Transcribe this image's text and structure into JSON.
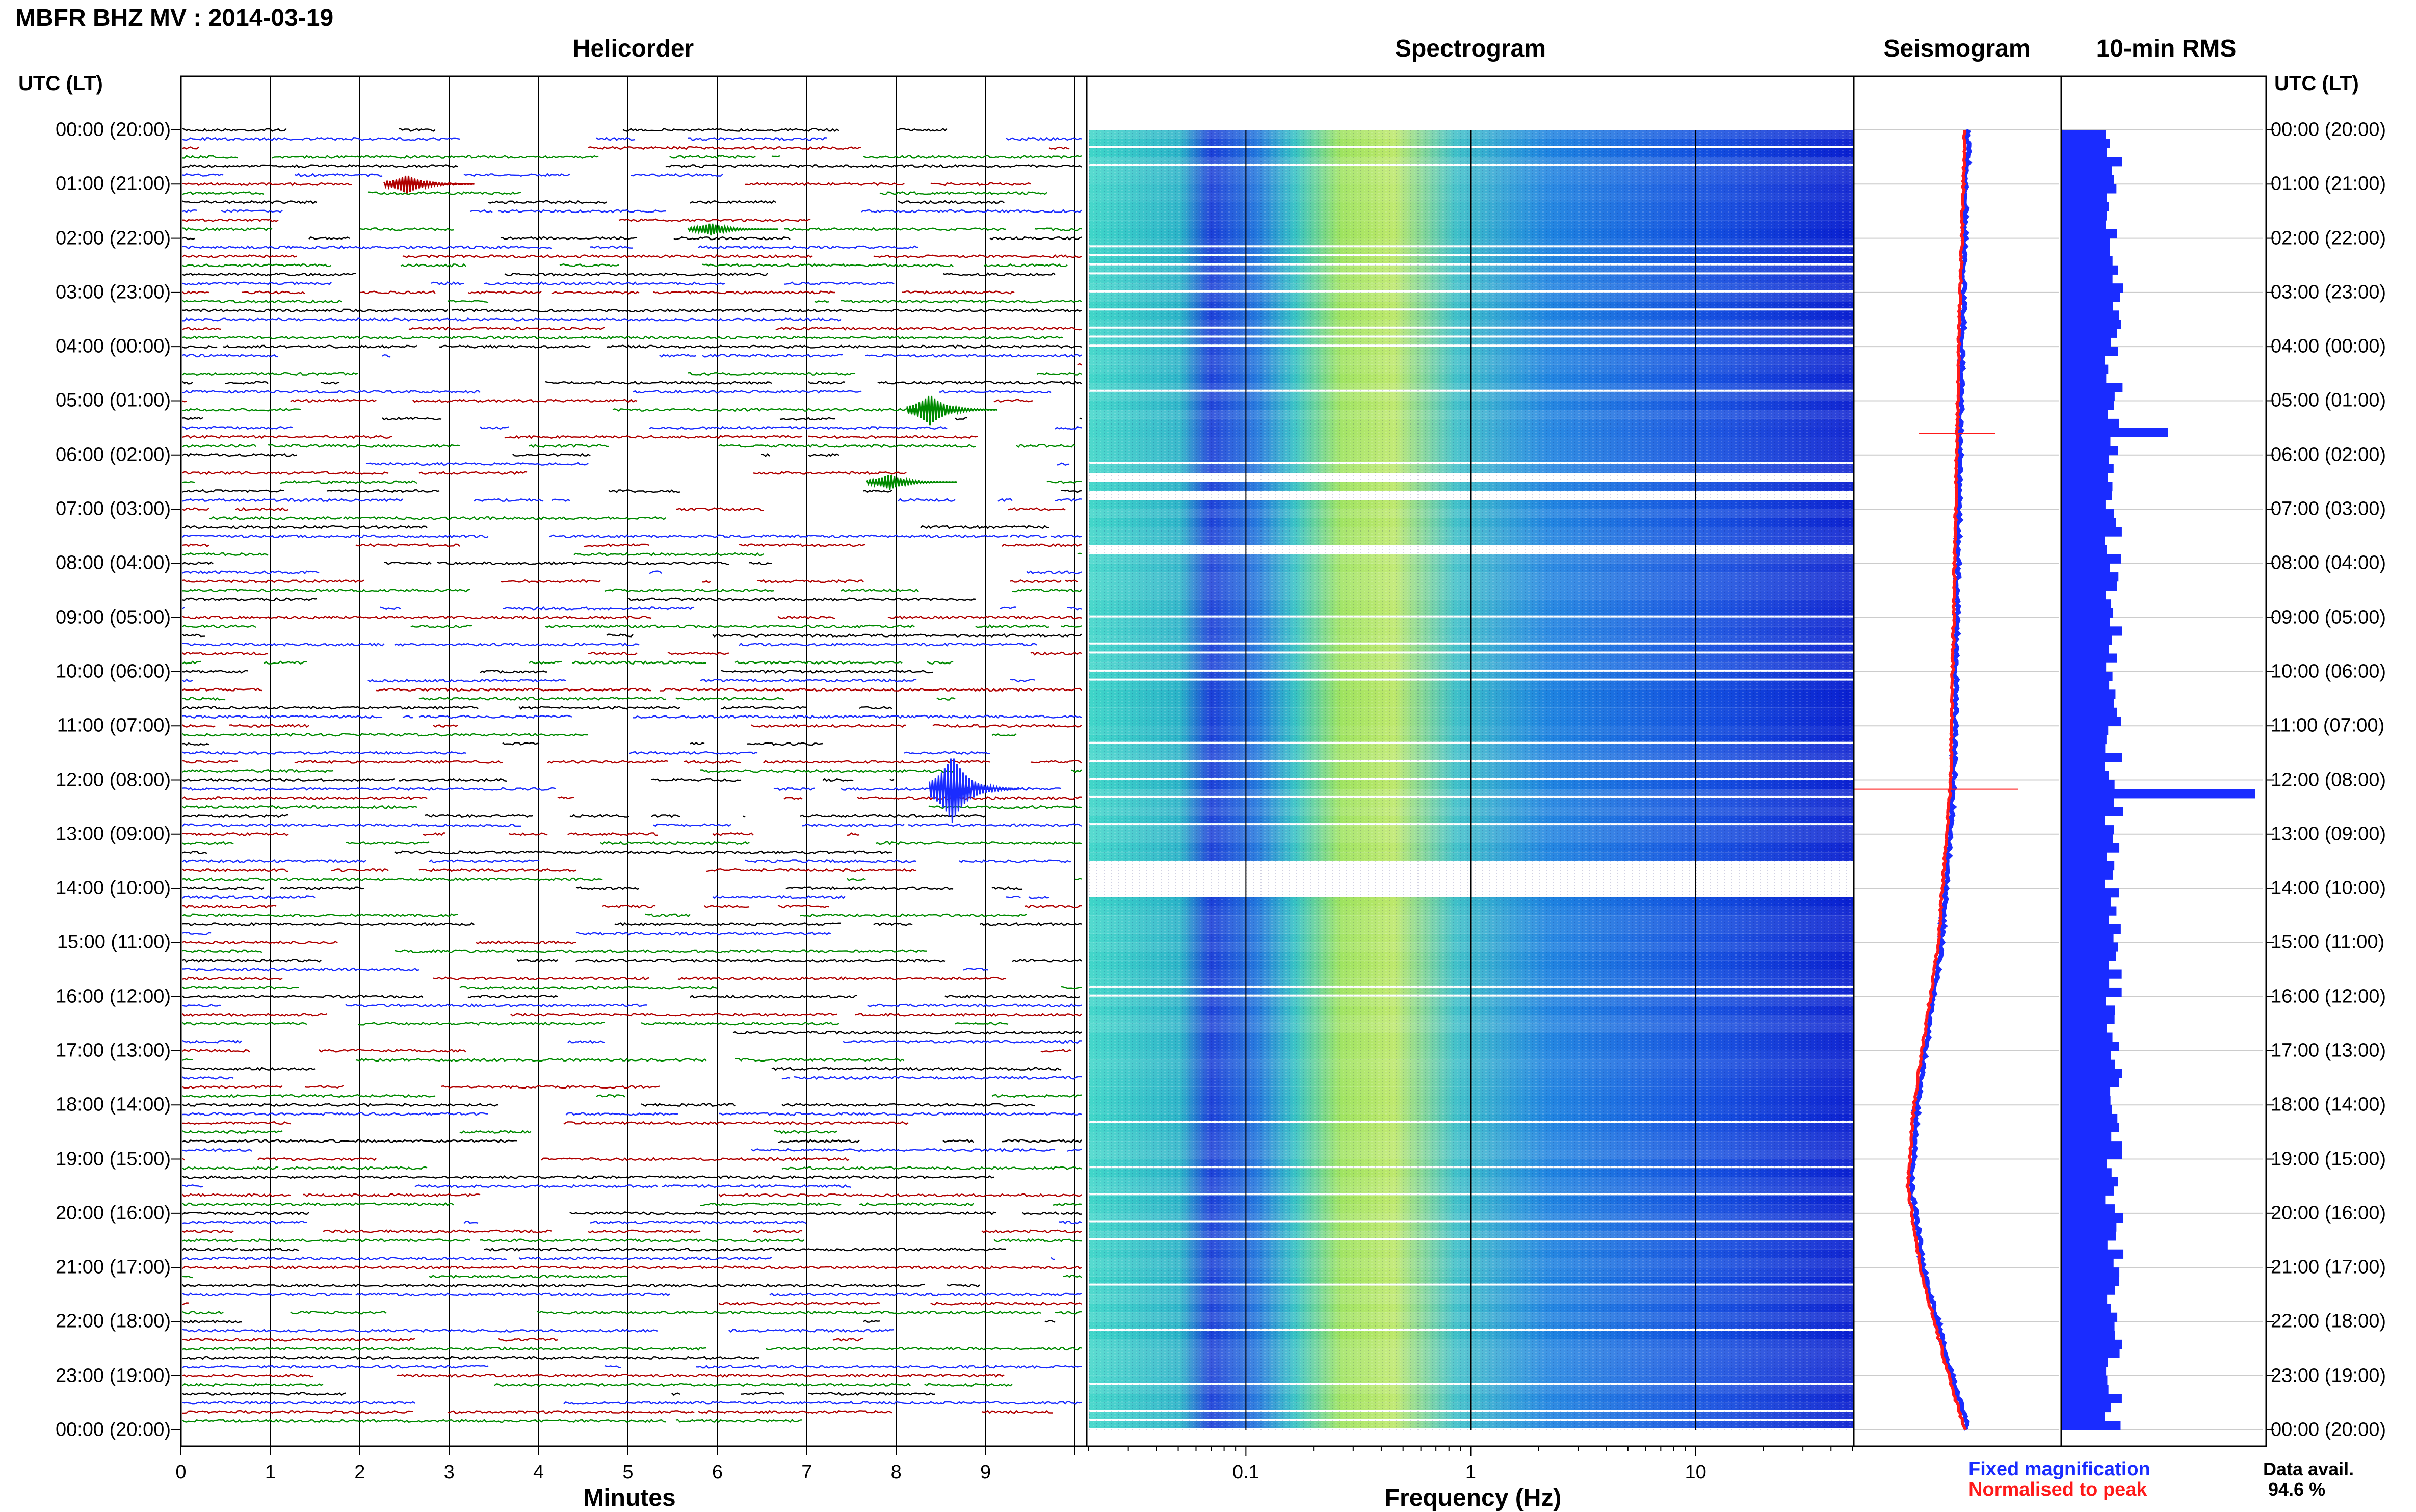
{
  "header": {
    "title": "MBFR BHZ MV : 2014-03-19"
  },
  "panels": {
    "helicorder": "Helicorder",
    "spectrogram": "Spectrogram",
    "seismogram": "Seismogram",
    "rms": "10-min RMS"
  },
  "axes": {
    "utc_head_left": "UTC (LT)",
    "utc_head_right": "UTC (LT)",
    "helicorder_xlabel": "Minutes",
    "spectrogram_xlabel": "Frequency (Hz)",
    "minute_ticks": [
      "0",
      "1",
      "2",
      "3",
      "4",
      "5",
      "6",
      "7",
      "8",
      "9"
    ],
    "freq_ticks": [
      "0.1",
      "1",
      "10"
    ]
  },
  "time_labels": [
    "00:00 (20:00)",
    "01:00 (21:00)",
    "02:00 (22:00)",
    "03:00 (23:00)",
    "04:00 (00:00)",
    "05:00 (01:00)",
    "06:00 (02:00)",
    "07:00 (03:00)",
    "08:00 (04:00)",
    "09:00 (05:00)",
    "10:00 (06:00)",
    "11:00 (07:00)",
    "12:00 (08:00)",
    "13:00 (09:00)",
    "14:00 (10:00)",
    "15:00 (11:00)",
    "16:00 (12:00)",
    "17:00 (13:00)",
    "18:00 (14:00)",
    "19:00 (15:00)",
    "20:00 (16:00)",
    "21:00 (17:00)",
    "22:00 (18:00)",
    "23:00 (19:00)",
    "00:00 (20:00)"
  ],
  "legend": {
    "fixed": "Fixed magnification",
    "normalised": "Normalised to peak",
    "colors": {
      "fixed": "#1a2cff",
      "normalised": "#ff1a1a"
    }
  },
  "availability": {
    "label": "Data avail.",
    "value": "94.6 %"
  },
  "chart_data": [
    {
      "type": "line",
      "title": "Helicorder",
      "xlabel": "Minutes",
      "xlim": [
        0,
        10
      ],
      "rows": 144,
      "row_colors": [
        "#000000",
        "#1a2cff",
        "#b00000",
        "#008a00"
      ],
      "events": [
        {
          "row": 6,
          "minute": 2.5,
          "amplitude": 0.6
        },
        {
          "row": 11,
          "minute": 5.9,
          "amplitude": 0.4
        },
        {
          "row": 31,
          "minute": 8.35,
          "amplitude": 1.0
        },
        {
          "row": 39,
          "minute": 7.9,
          "amplitude": 0.5
        },
        {
          "row": 73,
          "minute": 8.6,
          "amplitude": 2.2
        }
      ]
    },
    {
      "type": "heatmap",
      "title": "Spectrogram",
      "xlabel": "Frequency (Hz)",
      "xscale": "log",
      "xlim": [
        0.02,
        50
      ],
      "gaps_utc_hours": [
        6.3,
        6.7,
        7.7,
        13.6,
        13.9
      ]
    },
    {
      "type": "line",
      "title": "Seismogram",
      "series": [
        {
          "name": "Fixed magnification",
          "color": "#1a2cff"
        },
        {
          "name": "Normalised to peak",
          "color": "#ff1a1a"
        }
      ],
      "baseline_offset_by_hour": [
        {
          "hour": 0,
          "value": 0.0
        },
        {
          "hour": 4,
          "value": -0.03
        },
        {
          "hour": 8,
          "value": -0.05
        },
        {
          "hour": 12,
          "value": -0.07
        },
        {
          "hour": 15,
          "value": -0.13
        },
        {
          "hour": 18,
          "value": -0.25
        },
        {
          "hour": 19.5,
          "value": -0.28
        },
        {
          "hour": 21,
          "value": -0.22
        },
        {
          "hour": 23,
          "value": -0.08
        },
        {
          "hour": 24,
          "value": 0.0
        }
      ]
    },
    {
      "type": "bar",
      "title": "10-min RMS",
      "orientation": "horizontal",
      "bins": 144,
      "typical_value": 0.28,
      "peaks": [
        {
          "utc": "05:30",
          "value": 0.55
        },
        {
          "utc": "12:10",
          "value": 1.0
        },
        {
          "utc": "16:50",
          "value": 0.3
        }
      ]
    }
  ]
}
